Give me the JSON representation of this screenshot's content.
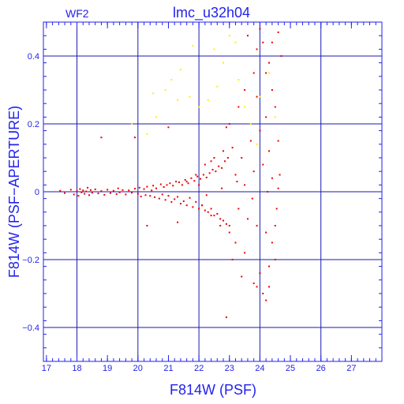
{
  "chart_data": {
    "type": "scatter",
    "title": "lmc_u32h04",
    "subtitle": "WF2",
    "xlabel": "F814W (PSF)",
    "ylabel": "F814W (PSF−APERTURE)",
    "xlim": [
      16.9,
      28.0
    ],
    "ylim": [
      -0.5,
      0.5
    ],
    "xticks": [
      17,
      18,
      19,
      20,
      21,
      22,
      23,
      24,
      25,
      26,
      27
    ],
    "yticks": [
      -0.4,
      -0.2,
      0,
      0.2,
      0.4
    ],
    "ytick_labels": [
      "−0.4",
      "−0.2",
      "0",
      "0.2",
      "0.4"
    ],
    "grid": true,
    "legend": "none",
    "colors": {
      "axis": "#2222ee",
      "grid": "#1a1ab0",
      "series_main": "#ee0000",
      "series_secondary": "#ffee00"
    },
    "series": [
      {
        "color_key": "series_main",
        "points": [
          [
            17.45,
            0.003
          ],
          [
            17.6,
            -0.004
          ],
          [
            17.8,
            0.006
          ],
          [
            17.9,
            -0.008
          ],
          [
            18.0,
            0.002
          ],
          [
            18.05,
            -0.012
          ],
          [
            18.1,
            0.008
          ],
          [
            18.15,
            -0.002
          ],
          [
            18.2,
            0.004
          ],
          [
            18.25,
            -0.006
          ],
          [
            18.3,
            0.001
          ],
          [
            18.35,
            0.012
          ],
          [
            18.4,
            -0.01
          ],
          [
            18.45,
            0.005
          ],
          [
            18.5,
            -0.003
          ],
          [
            18.6,
            0.007
          ],
          [
            18.7,
            -0.005
          ],
          [
            18.8,
            0.002
          ],
          [
            18.9,
            -0.009
          ],
          [
            19.0,
            0.006
          ],
          [
            19.1,
            -0.004
          ],
          [
            19.2,
            0.003
          ],
          [
            19.3,
            -0.007
          ],
          [
            19.35,
            0.01
          ],
          [
            19.4,
            -0.002
          ],
          [
            19.5,
            0.005
          ],
          [
            19.6,
            -0.008
          ],
          [
            19.7,
            0.004
          ],
          [
            19.8,
            -0.003
          ],
          [
            19.9,
            0.009
          ],
          [
            20.0,
            -0.006
          ],
          [
            20.05,
            0.012
          ],
          [
            20.1,
            -0.014
          ],
          [
            20.2,
            0.008
          ],
          [
            20.25,
            -0.01
          ],
          [
            20.3,
            0.015
          ],
          [
            20.4,
            -0.012
          ],
          [
            20.45,
            0.004
          ],
          [
            20.5,
            0.018
          ],
          [
            20.55,
            -0.016
          ],
          [
            20.6,
            0.01
          ],
          [
            20.7,
            -0.02
          ],
          [
            20.75,
            0.022
          ],
          [
            20.8,
            -0.008
          ],
          [
            20.85,
            0.014
          ],
          [
            20.9,
            -0.024
          ],
          [
            20.95,
            0.02
          ],
          [
            21.0,
            -0.012
          ],
          [
            21.05,
            0.025
          ],
          [
            21.1,
            -0.03
          ],
          [
            21.15,
            0.018
          ],
          [
            21.2,
            -0.022
          ],
          [
            21.25,
            0.03
          ],
          [
            21.3,
            -0.015
          ],
          [
            21.35,
            0.028
          ],
          [
            21.4,
            -0.035
          ],
          [
            21.45,
            0.02
          ],
          [
            21.5,
            -0.028
          ],
          [
            21.55,
            0.035
          ],
          [
            21.6,
            -0.04
          ],
          [
            21.65,
            0.025
          ],
          [
            21.7,
            -0.018
          ],
          [
            21.75,
            0.04
          ],
          [
            21.8,
            -0.045
          ],
          [
            21.85,
            0.032
          ],
          [
            21.9,
            -0.03
          ],
          [
            21.95,
            0.045
          ],
          [
            22.0,
            -0.05
          ],
          [
            22.05,
            0.038
          ],
          [
            22.1,
            -0.04
          ],
          [
            22.15,
            0.05
          ],
          [
            22.2,
            -0.055
          ],
          [
            22.25,
            0.042
          ],
          [
            22.3,
            -0.06
          ],
          [
            22.35,
            0.055
          ],
          [
            22.4,
            -0.05
          ],
          [
            22.45,
            0.065
          ],
          [
            22.5,
            -0.07
          ],
          [
            22.55,
            0.06
          ],
          [
            22.6,
            -0.065
          ],
          [
            22.65,
            0.075
          ],
          [
            22.7,
            -0.08
          ],
          [
            22.75,
            0.07
          ],
          [
            22.8,
            -0.085
          ],
          [
            22.85,
            0.09
          ],
          [
            22.9,
            -0.095
          ],
          [
            22.95,
            0.1
          ],
          [
            23.0,
            -0.1
          ],
          [
            21.3,
            -0.09
          ],
          [
            20.3,
            -0.1
          ],
          [
            19.9,
            0.16
          ],
          [
            21.0,
            0.19
          ],
          [
            22.0,
            0.02
          ],
          [
            22.4,
            0.09
          ],
          [
            23.0,
            0.2
          ],
          [
            22.9,
            0.19
          ],
          [
            22.9,
            -0.37
          ],
          [
            23.6,
            0.46
          ],
          [
            24.1,
            0.44
          ],
          [
            24.6,
            0.47
          ],
          [
            24.3,
            0.38
          ],
          [
            23.8,
            0.35
          ],
          [
            24.4,
            0.3
          ],
          [
            24.5,
            0.25
          ],
          [
            23.3,
            0.25
          ],
          [
            23.5,
            0.3
          ],
          [
            23.9,
            0.28
          ],
          [
            24.2,
            0.22
          ],
          [
            24.0,
            0.18
          ],
          [
            23.7,
            0.15
          ],
          [
            24.3,
            0.12
          ],
          [
            23.4,
            0.1
          ],
          [
            23.2,
            0.05
          ],
          [
            23.5,
            0.02
          ],
          [
            23.8,
            0.06
          ],
          [
            24.1,
            0.08
          ],
          [
            24.4,
            0.04
          ],
          [
            24.6,
            0.01
          ],
          [
            23.3,
            -0.05
          ],
          [
            23.6,
            -0.08
          ],
          [
            23.9,
            -0.1
          ],
          [
            24.2,
            -0.12
          ],
          [
            24.4,
            -0.15
          ],
          [
            24.5,
            -0.2
          ],
          [
            24.3,
            -0.22
          ],
          [
            24.0,
            -0.24
          ],
          [
            23.8,
            -0.27
          ],
          [
            23.9,
            -0.28
          ],
          [
            24.1,
            -0.3
          ],
          [
            24.2,
            -0.32
          ],
          [
            24.3,
            -0.28
          ],
          [
            23.5,
            -0.18
          ],
          [
            23.2,
            -0.15
          ],
          [
            23.0,
            -0.12
          ],
          [
            23.4,
            -0.25
          ],
          [
            24.5,
            -0.1
          ],
          [
            24.6,
            0.15
          ],
          [
            24.2,
            0.35
          ],
          [
            23.9,
            0.42
          ],
          [
            24.4,
            0.44
          ],
          [
            24.7,
            0.4
          ],
          [
            24.0,
            0.48
          ],
          [
            23.1,
            0.13
          ],
          [
            22.8,
            0.12
          ],
          [
            22.5,
            0.1
          ],
          [
            22.2,
            0.08
          ],
          [
            21.9,
            0.05
          ],
          [
            21.6,
            0.03
          ],
          [
            22.1,
            -0.04
          ],
          [
            22.4,
            -0.07
          ],
          [
            22.7,
            -0.1
          ],
          [
            23.1,
            -0.2
          ],
          [
            18.8,
            0.16
          ],
          [
            24.55,
            -0.05
          ],
          [
            24.65,
            0.05
          ],
          [
            24.25,
            0.0
          ],
          [
            23.75,
            -0.02
          ],
          [
            23.25,
            0.03
          ],
          [
            22.75,
            0.01
          ],
          [
            22.25,
            -0.01
          ]
        ]
      },
      {
        "color_key": "series_secondary",
        "points": [
          [
            20.3,
            0.17
          ],
          [
            20.6,
            0.22
          ],
          [
            20.9,
            0.3
          ],
          [
            21.1,
            0.33
          ],
          [
            21.4,
            0.36
          ],
          [
            21.7,
            0.28
          ],
          [
            22.0,
            0.25
          ],
          [
            22.3,
            0.27
          ],
          [
            22.6,
            0.31
          ],
          [
            22.5,
            0.42
          ],
          [
            23.0,
            0.46
          ],
          [
            23.2,
            0.44
          ],
          [
            22.8,
            0.38
          ],
          [
            23.3,
            0.33
          ],
          [
            23.7,
            0.2
          ],
          [
            24.0,
            0.28
          ],
          [
            24.3,
            0.35
          ],
          [
            24.5,
            0.22
          ],
          [
            23.5,
            0.25
          ],
          [
            21.8,
            0.43
          ],
          [
            20.5,
            0.29
          ],
          [
            19.8,
            0.2
          ],
          [
            21.3,
            0.27
          ],
          [
            23.9,
            0.14
          ]
        ]
      }
    ]
  }
}
